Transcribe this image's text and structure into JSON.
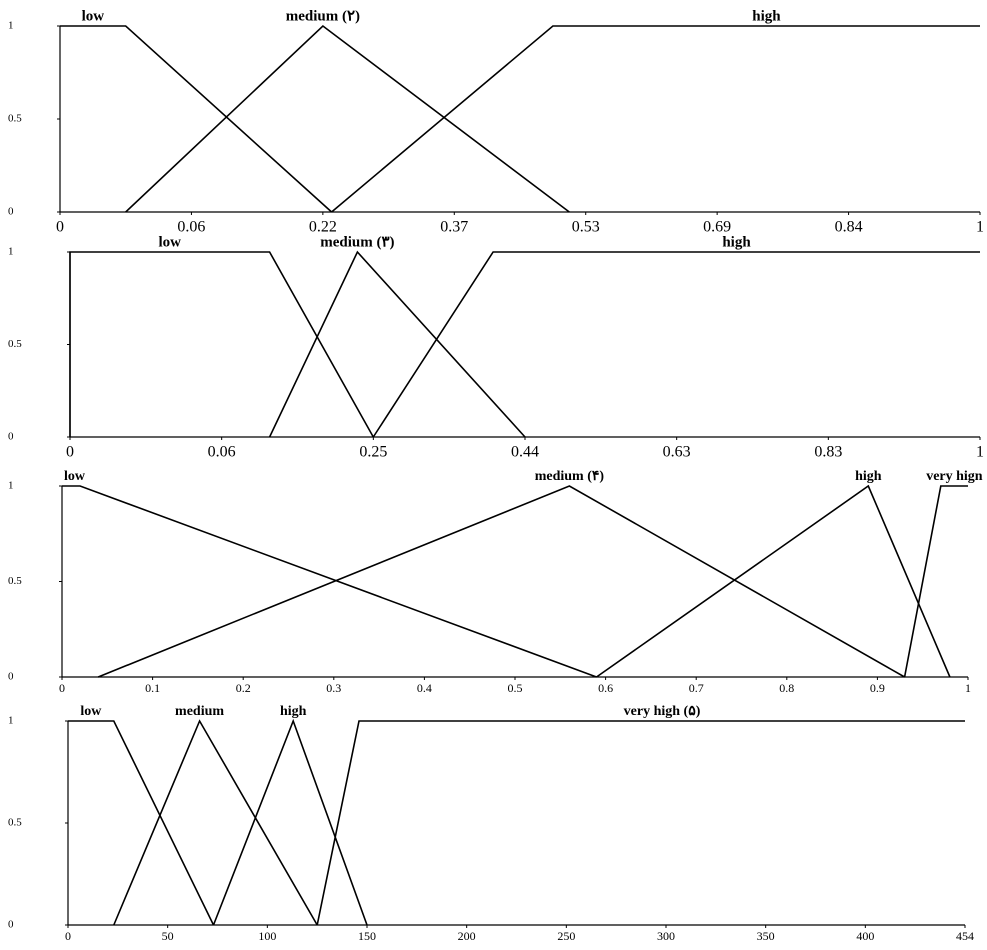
{
  "chart_data": [
    {
      "type": "line",
      "ylim": [
        0,
        1
      ],
      "yticks": [
        0,
        0.5,
        1
      ],
      "xlim": [
        0,
        1
      ],
      "xticks": [
        0,
        0.06,
        0.22,
        0.37,
        0.53,
        0.69,
        0.84,
        1
      ],
      "series": [
        {
          "name": "low",
          "color": "#000000",
          "x": [
            0,
            0.03,
            0.23
          ],
          "values": [
            1,
            1,
            0
          ]
        },
        {
          "name": "medium (۲)",
          "color": "#000000",
          "x": [
            0.03,
            0.22,
            0.51
          ],
          "values": [
            0,
            1,
            0
          ]
        },
        {
          "name": "high",
          "color": "#000000",
          "x": [
            0.23,
            0.49,
            1
          ],
          "values": [
            0,
            1,
            1
          ]
        }
      ]
    },
    {
      "type": "line",
      "ylim": [
        0,
        1
      ],
      "yticks": [
        0,
        0.5,
        1
      ],
      "xlim": [
        0,
        1
      ],
      "xticks": [
        0,
        0.06,
        0.25,
        0.44,
        0.63,
        0.83,
        1
      ],
      "series": [
        {
          "name": "low",
          "color": "#000000",
          "x": [
            0,
            0,
            0.12,
            0.25
          ],
          "values": [
            0,
            1,
            1,
            0
          ]
        },
        {
          "name": "medium (۳)",
          "color": "#000000",
          "x": [
            0.12,
            0.23,
            0.44
          ],
          "values": [
            0,
            1,
            0
          ]
        },
        {
          "name": "high",
          "color": "#000000",
          "x": [
            0.25,
            0.4,
            1
          ],
          "values": [
            0,
            1,
            1
          ]
        }
      ]
    },
    {
      "type": "line",
      "ylim": [
        0,
        1
      ],
      "yticks": [
        0,
        0.5,
        1
      ],
      "xlim": [
        0,
        1
      ],
      "xticks": [
        0,
        0.1,
        0.2,
        0.3,
        0.4,
        0.5,
        0.6,
        0.7,
        0.8,
        0.9,
        1
      ],
      "series": [
        {
          "name": "low",
          "color": "#000000",
          "x": [
            0,
            0.02,
            0.59
          ],
          "values": [
            1,
            1,
            0
          ]
        },
        {
          "name": "medium (۴)",
          "color": "#000000",
          "x": [
            0.04,
            0.56,
            0.93
          ],
          "values": [
            0,
            1,
            0
          ]
        },
        {
          "name": "high",
          "color": "#000000",
          "x": [
            0.59,
            0.89,
            0.98
          ],
          "values": [
            0,
            1,
            0
          ]
        },
        {
          "name": "very hign",
          "color": "#000000",
          "x": [
            0.93,
            0.97,
            1
          ],
          "values": [
            0,
            1,
            1
          ]
        }
      ]
    },
    {
      "type": "line",
      "ylim": [
        0,
        1
      ],
      "yticks": [
        0,
        0.5,
        1
      ],
      "xlim": [
        0,
        454
      ],
      "xticks": [
        0,
        50,
        100,
        150,
        200,
        250,
        300,
        350,
        400,
        454
      ],
      "series": [
        {
          "name": "low",
          "color": "#000000",
          "x": [
            0,
            23,
            73
          ],
          "values": [
            1,
            1,
            0
          ]
        },
        {
          "name": "medium",
          "color": "#000000",
          "x": [
            23,
            66,
            125
          ],
          "values": [
            0,
            1,
            0
          ]
        },
        {
          "name": "high",
          "color": "#000000",
          "x": [
            73,
            113,
            150
          ],
          "values": [
            0,
            1,
            0
          ]
        },
        {
          "name": "very high (۵)",
          "color": "#000000",
          "x": [
            125,
            146,
            454
          ],
          "values": [
            0,
            1,
            1
          ]
        }
      ]
    }
  ]
}
